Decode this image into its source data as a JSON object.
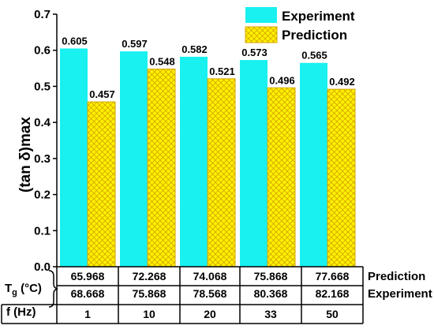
{
  "chart_data": {
    "type": "bar",
    "categories": [
      "1",
      "10",
      "20",
      "33",
      "50"
    ],
    "series": [
      {
        "name": "Experiment",
        "values": [
          0.605,
          0.597,
          0.582,
          0.573,
          0.565
        ],
        "labels": [
          "0.605",
          "0.597",
          "0.582",
          "0.573",
          "0.565"
        ],
        "color": "#19F0F0"
      },
      {
        "name": "Prediction",
        "values": [
          0.457,
          0.548,
          0.521,
          0.496,
          0.492
        ],
        "labels": [
          "0.457",
          "0.548",
          "0.521",
          "0.496",
          "0.492"
        ],
        "color": "#FFF200"
      }
    ],
    "ylabel": "(tan δ)max",
    "ylim": [
      0.0,
      0.7
    ],
    "yticks": [
      "0.0",
      "0.1",
      "0.2",
      "0.3",
      "0.4",
      "0.5",
      "0.6",
      "0.7"
    ],
    "legend_position": "top-right",
    "grid": false,
    "table": {
      "tg_label_main": "T",
      "tg_label_sub": "g",
      "tg_label_unit": " (°C)",
      "f_label": "f (Hz)",
      "rows": [
        {
          "name": "Prediction",
          "values": [
            "65.968",
            "72.268",
            "74.068",
            "75.868",
            "77.668"
          ]
        },
        {
          "name": "Experiment",
          "values": [
            "68.668",
            "75.868",
            "78.568",
            "80.368",
            "82.168"
          ]
        }
      ],
      "f_values": [
        "1",
        "10",
        "20",
        "33",
        "50"
      ]
    }
  }
}
